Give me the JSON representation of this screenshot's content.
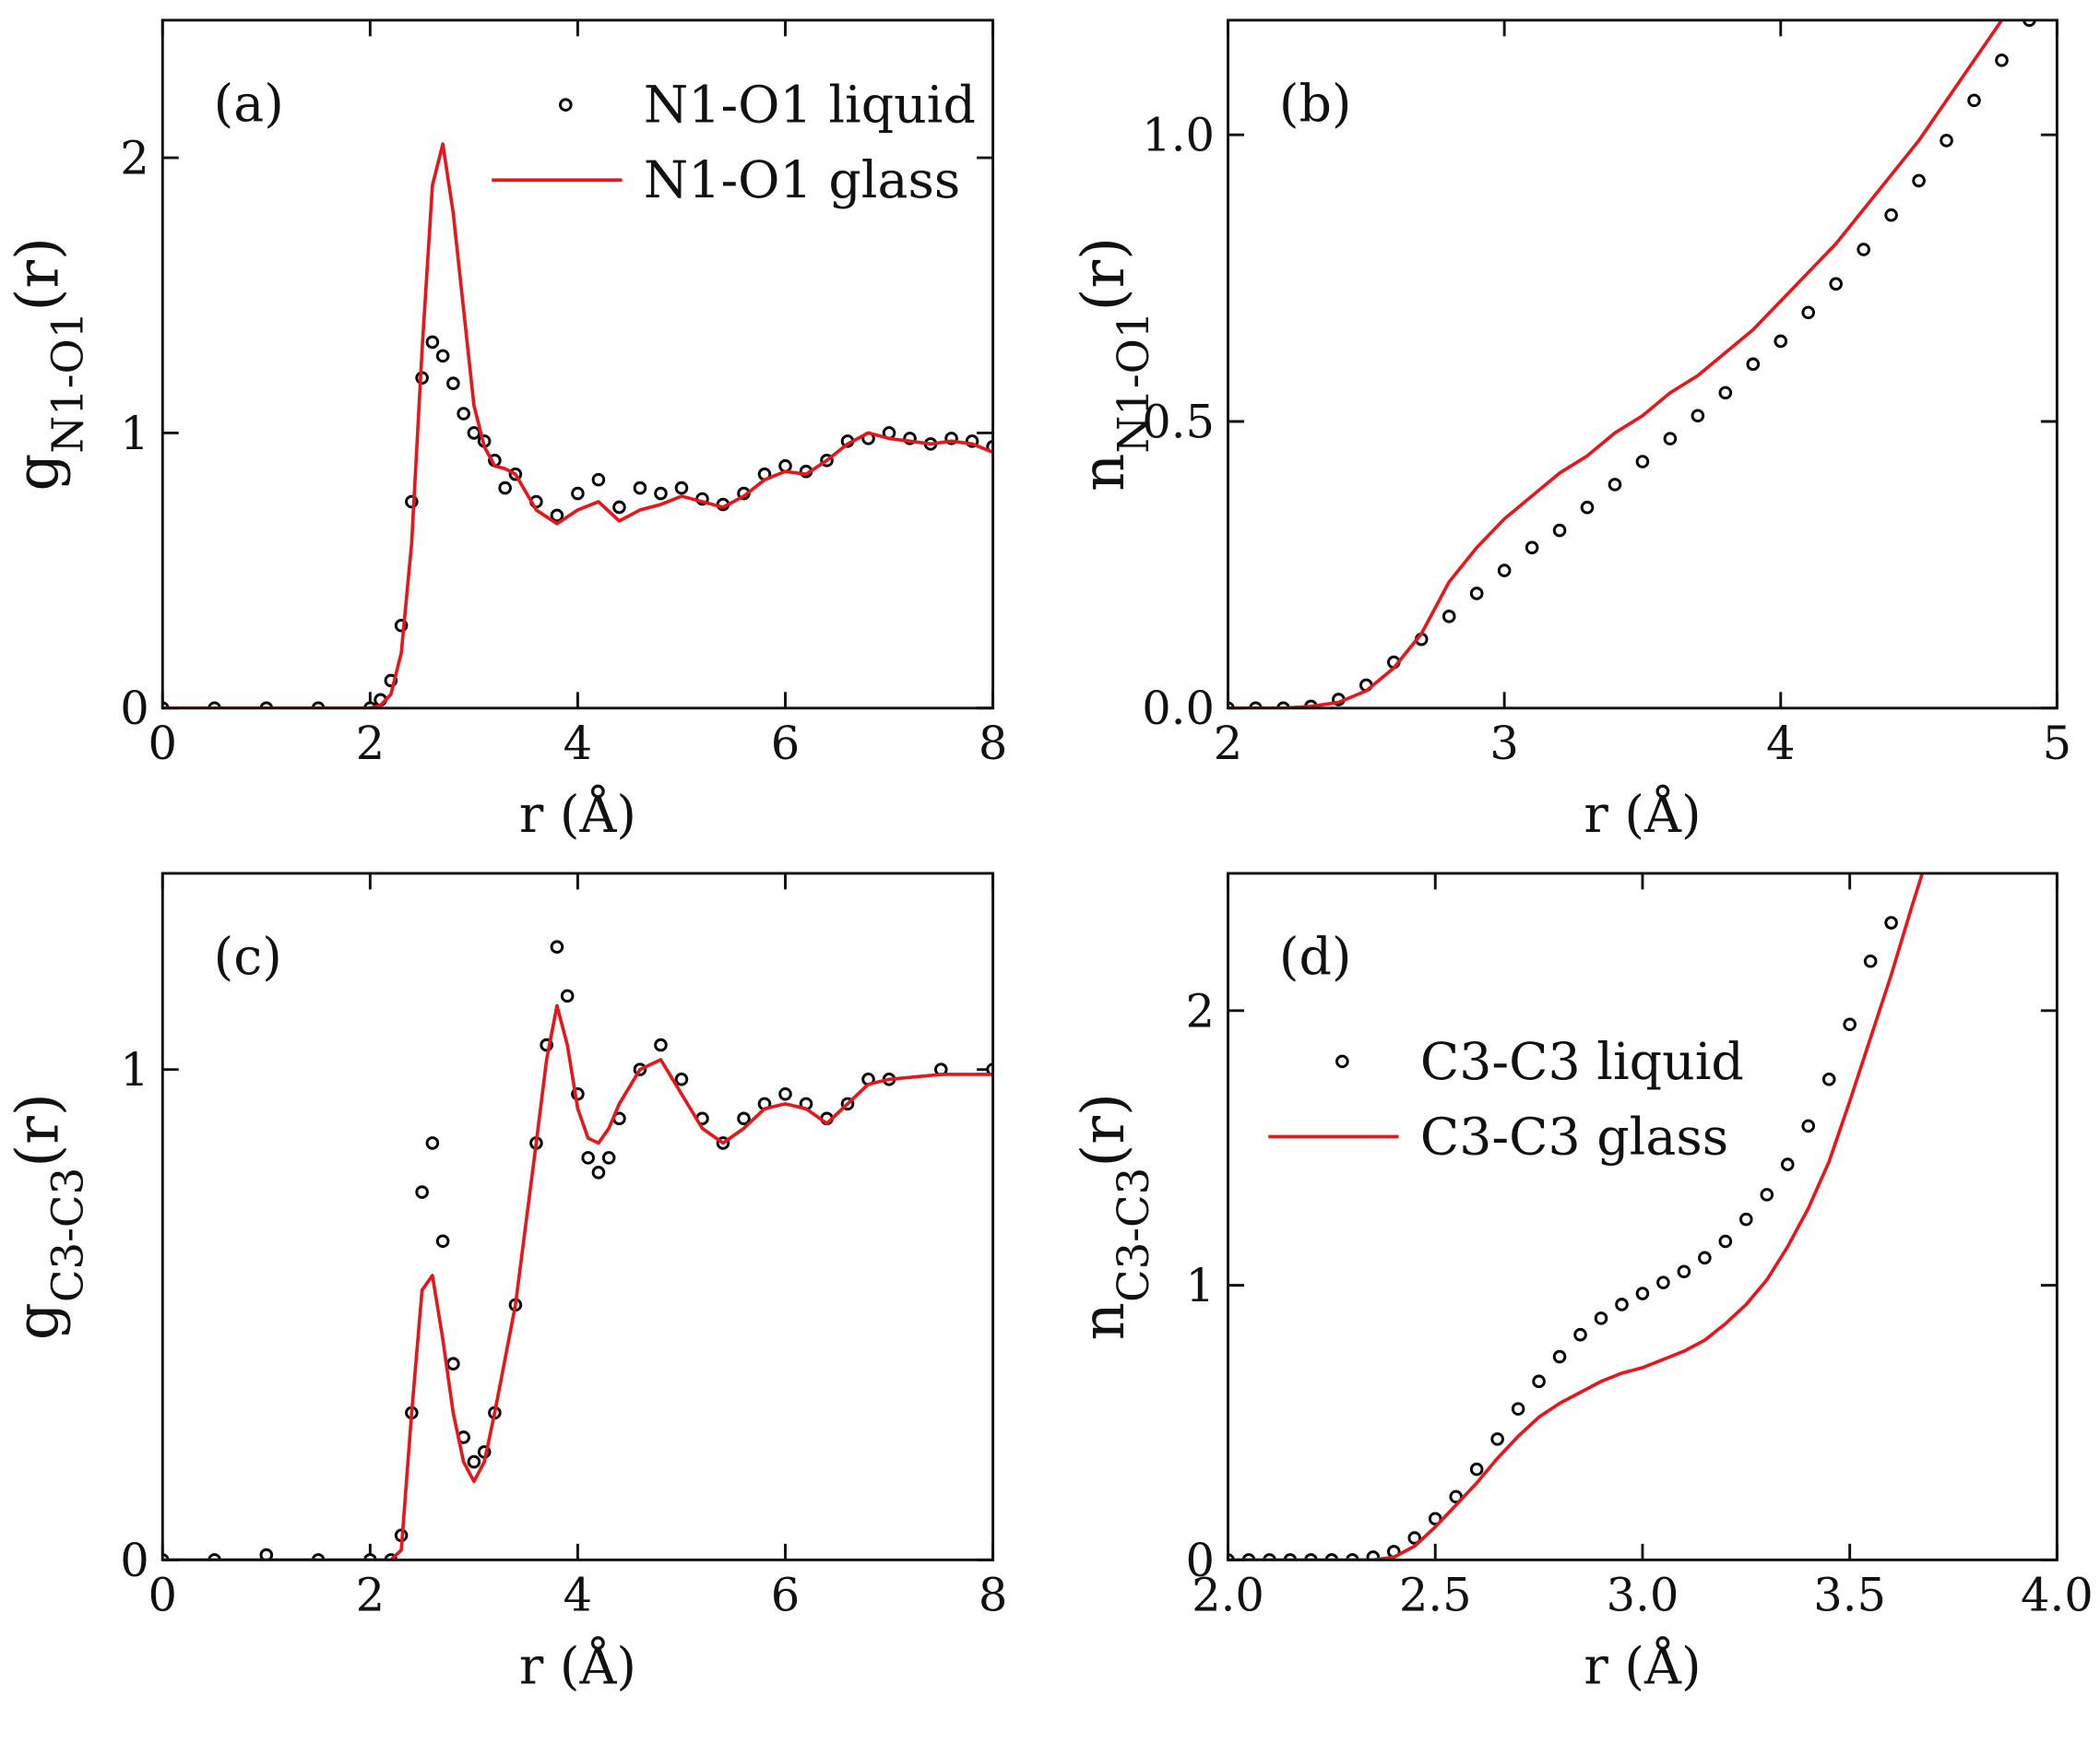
{
  "chart_data": [
    {
      "type": "line",
      "panel_label": "(a)",
      "x_label": "r (Å)",
      "y_label": [
        "g",
        "N1-O1",
        "(r)"
      ],
      "x": [
        0,
        0.5,
        1,
        1.5,
        2,
        2.1,
        2.2,
        2.3,
        2.4,
        2.5,
        2.6,
        2.7,
        2.8,
        2.9,
        3.0,
        3.1,
        3.2,
        3.3,
        3.4,
        3.6,
        3.8,
        4.0,
        4.2,
        4.4,
        4.6,
        4.8,
        5.0,
        5.2,
        5.4,
        5.6,
        5.8,
        6.0,
        6.2,
        6.4,
        6.6,
        6.8,
        7.0,
        7.2,
        7.4,
        7.6,
        7.8,
        8.0
      ],
      "series": [
        {
          "name": "N1-O1 liquid",
          "mode": "markers",
          "color": "#000000",
          "values": [
            0,
            0,
            0,
            0,
            0,
            0.03,
            0.1,
            0.3,
            0.75,
            1.2,
            1.33,
            1.28,
            1.18,
            1.07,
            1.0,
            0.97,
            0.9,
            0.8,
            0.85,
            0.75,
            0.7,
            0.78,
            0.83,
            0.73,
            0.8,
            0.78,
            0.8,
            0.76,
            0.74,
            0.78,
            0.85,
            0.88,
            0.86,
            0.9,
            0.97,
            0.98,
            1.0,
            0.98,
            0.96,
            0.98,
            0.97,
            0.95
          ]
        },
        {
          "name": "N1-O1 glass",
          "mode": "line",
          "color": "#e8161b",
          "values": [
            0,
            0,
            0,
            0,
            0,
            0.01,
            0.05,
            0.2,
            0.6,
            1.3,
            1.9,
            2.05,
            1.8,
            1.45,
            1.1,
            0.95,
            0.88,
            0.87,
            0.85,
            0.72,
            0.67,
            0.72,
            0.75,
            0.68,
            0.72,
            0.74,
            0.77,
            0.75,
            0.73,
            0.77,
            0.83,
            0.86,
            0.85,
            0.9,
            0.96,
            1.0,
            0.98,
            0.97,
            0.96,
            0.97,
            0.96,
            0.93
          ]
        }
      ],
      "xlim": [
        0,
        8
      ],
      "xticks": [
        0,
        2,
        4,
        6,
        8
      ],
      "ylim": [
        0,
        2.5
      ],
      "yticks": [
        0,
        1,
        2
      ],
      "legend": "upper right"
    },
    {
      "type": "line",
      "panel_label": "(b)",
      "x_label": "r (Å)",
      "y_label": [
        "n",
        "N1-O1",
        "(r)"
      ],
      "x": [
        2.0,
        2.1,
        2.2,
        2.3,
        2.4,
        2.5,
        2.6,
        2.7,
        2.8,
        2.9,
        3.0,
        3.1,
        3.2,
        3.3,
        3.4,
        3.5,
        3.6,
        3.7,
        3.8,
        3.9,
        4.0,
        4.1,
        4.2,
        4.3,
        4.4,
        4.5,
        4.6,
        4.7,
        4.8,
        4.9,
        5.0
      ],
      "series": [
        {
          "mode": "markers",
          "color": "#000000",
          "values": [
            0,
            0,
            0,
            0.003,
            0.015,
            0.04,
            0.08,
            0.12,
            0.16,
            0.2,
            0.24,
            0.28,
            0.31,
            0.35,
            0.39,
            0.43,
            0.47,
            0.51,
            0.55,
            0.6,
            0.64,
            0.69,
            0.74,
            0.8,
            0.86,
            0.92,
            0.99,
            1.06,
            1.13,
            1.2,
            null
          ]
        },
        {
          "mode": "line",
          "color": "#e8161b",
          "values": [
            0,
            0,
            0,
            0.003,
            0.01,
            0.03,
            0.07,
            0.13,
            0.22,
            0.28,
            0.33,
            0.37,
            0.41,
            0.44,
            0.48,
            0.51,
            0.55,
            0.58,
            0.62,
            0.66,
            0.71,
            0.76,
            0.81,
            0.87,
            0.93,
            0.99,
            1.06,
            1.13,
            1.2,
            null,
            null
          ]
        }
      ],
      "xlim": [
        2,
        5
      ],
      "xticks": [
        2,
        3,
        4,
        5
      ],
      "ylim": [
        0,
        1.2
      ],
      "yticks": [
        {
          "value": 0,
          "label": "0.0"
        },
        {
          "value": 0.5,
          "label": "0.5"
        },
        {
          "value": 1,
          "label": "1.0"
        }
      ]
    },
    {
      "type": "line",
      "panel_label": "(c)",
      "x_label": "r (Å)",
      "y_label": [
        "g",
        "C3-C3",
        "(r)"
      ],
      "x": [
        0,
        0.5,
        1,
        1.5,
        2,
        2.2,
        2.3,
        2.4,
        2.5,
        2.6,
        2.7,
        2.8,
        2.9,
        3.0,
        3.1,
        3.2,
        3.4,
        3.6,
        3.7,
        3.8,
        3.9,
        4.0,
        4.1,
        4.2,
        4.3,
        4.4,
        4.6,
        4.8,
        5.0,
        5.2,
        5.4,
        5.6,
        5.8,
        6.0,
        6.2,
        6.4,
        6.6,
        6.8,
        7.0,
        7.5,
        8.0
      ],
      "series": [
        {
          "mode": "markers",
          "color": "#000000",
          "values": [
            0,
            0,
            0.01,
            0,
            0,
            0,
            0.05,
            0.3,
            0.75,
            0.85,
            0.65,
            0.4,
            0.25,
            0.2,
            0.22,
            0.3,
            0.52,
            0.85,
            1.05,
            1.25,
            1.15,
            0.95,
            0.82,
            0.79,
            0.82,
            0.9,
            1.0,
            1.05,
            0.98,
            0.9,
            0.85,
            0.9,
            0.93,
            0.95,
            0.93,
            0.9,
            0.93,
            0.98,
            0.98,
            1.0,
            1.0
          ]
        },
        {
          "mode": "line",
          "color": "#e8161b",
          "values": [
            0,
            0,
            0,
            0,
            0,
            0,
            0.02,
            0.3,
            0.55,
            0.58,
            0.45,
            0.3,
            0.2,
            0.16,
            0.2,
            0.3,
            0.52,
            0.85,
            1.02,
            1.13,
            1.05,
            0.92,
            0.86,
            0.85,
            0.88,
            0.93,
            1.0,
            1.02,
            0.95,
            0.88,
            0.85,
            0.88,
            0.92,
            0.93,
            0.92,
            0.89,
            0.93,
            0.97,
            0.98,
            0.99,
            0.99
          ]
        }
      ],
      "xlim": [
        0,
        8
      ],
      "xticks": [
        0,
        2,
        4,
        6,
        8
      ],
      "ylim": [
        0,
        1.4
      ],
      "yticks": [
        0,
        1
      ]
    },
    {
      "type": "line",
      "panel_label": "(d)",
      "x_label": "r (Å)",
      "y_label": [
        "n",
        "C3-C3",
        "(r)"
      ],
      "x": [
        2.0,
        2.05,
        2.1,
        2.15,
        2.2,
        2.25,
        2.3,
        2.35,
        2.4,
        2.45,
        2.5,
        2.55,
        2.6,
        2.65,
        2.7,
        2.75,
        2.8,
        2.85,
        2.9,
        2.95,
        3.0,
        3.05,
        3.1,
        3.15,
        3.2,
        3.25,
        3.3,
        3.35,
        3.4,
        3.45,
        3.5,
        3.55,
        3.6,
        3.65,
        3.7,
        3.75,
        3.8,
        3.85,
        3.9,
        3.95,
        4.0
      ],
      "series": [
        {
          "name": "C3-C3 liquid",
          "mode": "markers",
          "color": "#000000",
          "values": [
            0,
            0,
            0,
            0,
            0,
            0,
            0,
            0.01,
            0.03,
            0.08,
            0.15,
            0.23,
            0.33,
            0.44,
            0.55,
            0.65,
            0.74,
            0.82,
            0.88,
            0.93,
            0.97,
            1.01,
            1.05,
            1.1,
            1.16,
            1.24,
            1.33,
            1.44,
            1.58,
            1.75,
            1.95,
            2.18,
            2.32,
            null,
            null,
            null,
            null,
            null,
            null,
            null,
            null
          ]
        },
        {
          "name": "C3-C3 glass",
          "mode": "line",
          "color": "#e8161b",
          "values": [
            0,
            0,
            0,
            0,
            0,
            0,
            0,
            0,
            0.01,
            0.05,
            0.12,
            0.2,
            0.28,
            0.37,
            0.45,
            0.52,
            0.57,
            0.61,
            0.65,
            0.68,
            0.7,
            0.73,
            0.76,
            0.8,
            0.86,
            0.93,
            1.02,
            1.14,
            1.28,
            1.45,
            1.67,
            1.9,
            2.13,
            2.38,
            2.62,
            null,
            null,
            null,
            null,
            null,
            null
          ]
        }
      ],
      "xlim": [
        2,
        4
      ],
      "xticks": [
        {
          "value": 2,
          "label": "2.0"
        },
        {
          "value": 2.5,
          "label": "2.5"
        },
        {
          "value": 3,
          "label": "3.0"
        },
        {
          "value": 3.5,
          "label": "3.5"
        },
        {
          "value": 4,
          "label": "4.0"
        }
      ],
      "ylim": [
        0,
        2.5
      ],
      "yticks": [
        0,
        1,
        2
      ],
      "legend": "upper left"
    }
  ]
}
